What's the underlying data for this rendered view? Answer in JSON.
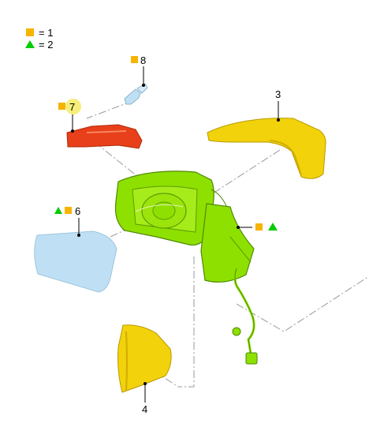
{
  "legend": {
    "items": [
      {
        "symbol": "square-icon",
        "text": "= 1"
      },
      {
        "symbol": "triangle-icon",
        "text": "= 2"
      }
    ]
  },
  "callouts": {
    "c1": "3",
    "c2": "4",
    "c3": "6",
    "c4": "7",
    "c5": "8"
  },
  "colors": {
    "square": "#f6b400",
    "triangle": "#00cc00",
    "housing": "#8ee000",
    "cover": "#f2d20a",
    "glass": "#bfe0f4",
    "indicator": "#e8401a",
    "bulb": "#bfe0f4",
    "highlight": "#f5ee7a",
    "centerline": "#9a9a9a"
  }
}
